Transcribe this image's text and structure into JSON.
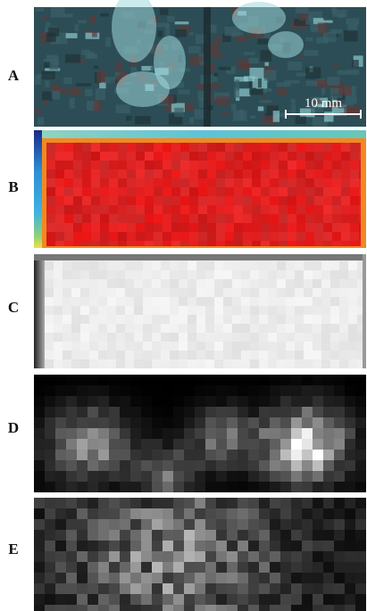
{
  "panels": [
    {
      "label": "A"
    },
    {
      "label": "B"
    },
    {
      "label": "C"
    },
    {
      "label": "D"
    },
    {
      "label": "E"
    }
  ],
  "scale_bar": "10 mm"
}
